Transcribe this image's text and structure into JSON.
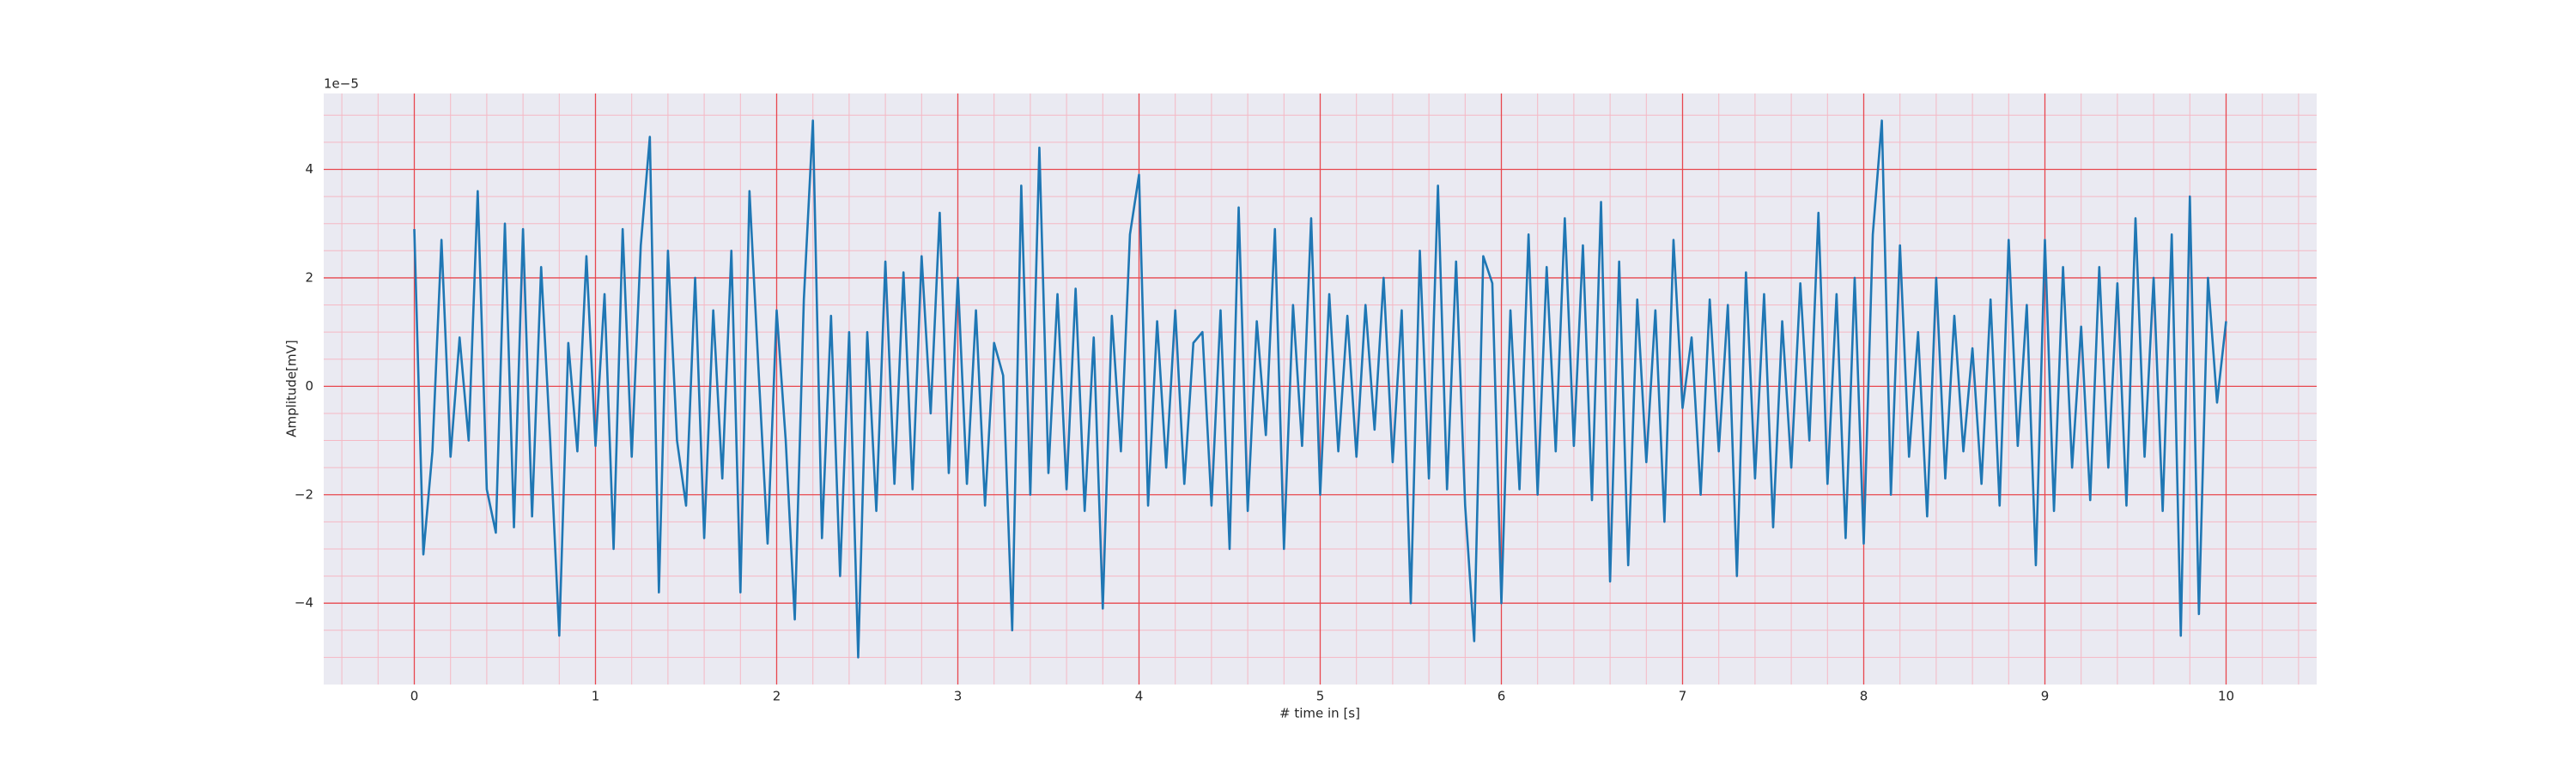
{
  "chart_data": {
    "type": "line",
    "xlabel": "# time in [s]",
    "ylabel": "Amplitude[mV]",
    "y_offset_label": "1e−5",
    "color": "#1f77b4",
    "grid": true,
    "minor_grid": true,
    "xlim": [
      -0.5,
      10.5
    ],
    "ylim": [
      -5.5,
      5.4
    ],
    "xticks": [
      0,
      1,
      2,
      3,
      4,
      5,
      6,
      7,
      8,
      9,
      10
    ],
    "yticks": [
      {
        "value": -4,
        "label": "−4"
      },
      {
        "value": -2,
        "label": "−2"
      },
      0,
      2,
      4
    ],
    "xminorticks": [
      -0.4,
      -0.2,
      0.2,
      0.4,
      0.6,
      0.8,
      1.2,
      1.4,
      1.6,
      1.8,
      2.2,
      2.4,
      2.6,
      2.8,
      3.2,
      3.4,
      3.6,
      3.8,
      4.2,
      4.4,
      4.6,
      4.8,
      5.2,
      5.4,
      5.6,
      5.8,
      6.2,
      6.4,
      6.6,
      6.8,
      7.2,
      7.4,
      7.6,
      7.8,
      8.2,
      8.4,
      8.6,
      8.8,
      9.2,
      9.4,
      9.6,
      9.8,
      10.2,
      10.4
    ],
    "yminorticks": [
      -5,
      -4.5,
      -3.5,
      -3,
      -2.5,
      -1.5,
      -1,
      -0.5,
      0.5,
      1,
      1.5,
      2.5,
      3,
      3.5,
      4.5,
      5
    ],
    "x": [
      0,
      0.05,
      0.1,
      0.15,
      0.2,
      0.25,
      0.3,
      0.35,
      0.4,
      0.45,
      0.5,
      0.55,
      0.6,
      0.65,
      0.7,
      0.75,
      0.8,
      0.85,
      0.9,
      0.95,
      1,
      1.05,
      1.1,
      1.15,
      1.2,
      1.25,
      1.3,
      1.35,
      1.4,
      1.45,
      1.5,
      1.55,
      1.6,
      1.65,
      1.7,
      1.75,
      1.8,
      1.85,
      1.9,
      1.95,
      2,
      2.05,
      2.1,
      2.15,
      2.2,
      2.25,
      2.3,
      2.35,
      2.4,
      2.45,
      2.5,
      2.55,
      2.6,
      2.65,
      2.7,
      2.75,
      2.8,
      2.85,
      2.9,
      2.95,
      3,
      3.05,
      3.1,
      3.15,
      3.2,
      3.25,
      3.3,
      3.35,
      3.4,
      3.45,
      3.5,
      3.55,
      3.6,
      3.65,
      3.7,
      3.75,
      3.8,
      3.85,
      3.9,
      3.95,
      4,
      4.05,
      4.1,
      4.15,
      4.2,
      4.25,
      4.3,
      4.35,
      4.4,
      4.45,
      4.5,
      4.55,
      4.6,
      4.65,
      4.7,
      4.75,
      4.8,
      4.85,
      4.9,
      4.95,
      5,
      5.05,
      5.1,
      5.15,
      5.2,
      5.25,
      5.3,
      5.35,
      5.4,
      5.45,
      5.5,
      5.55,
      5.6,
      5.65,
      5.7,
      5.75,
      5.8,
      5.85,
      5.9,
      5.95,
      6,
      6.05,
      6.1,
      6.15,
      6.2,
      6.25,
      6.3,
      6.35,
      6.4,
      6.45,
      6.5,
      6.55,
      6.6,
      6.65,
      6.7,
      6.75,
      6.8,
      6.85,
      6.9,
      6.95,
      7,
      7.05,
      7.1,
      7.15,
      7.2,
      7.25,
      7.3,
      7.35,
      7.4,
      7.45,
      7.5,
      7.55,
      7.6,
      7.65,
      7.7,
      7.75,
      7.8,
      7.85,
      7.9,
      7.95,
      8,
      8.05,
      8.1,
      8.15,
      8.2,
      8.25,
      8.3,
      8.35,
      8.4,
      8.45,
      8.5,
      8.55,
      8.6,
      8.65,
      8.7,
      8.75,
      8.8,
      8.85,
      8.9,
      8.95,
      9,
      9.05,
      9.1,
      9.15,
      9.2,
      9.25,
      9.3,
      9.35,
      9.4,
      9.45,
      9.5,
      9.55,
      9.6,
      9.65,
      9.7,
      9.75,
      9.8,
      9.85,
      9.9,
      9.95,
      10
    ],
    "values": [
      2.9,
      -3.1,
      -1.2,
      2.7,
      -1.3,
      0.9,
      -1.0,
      3.6,
      -1.9,
      -2.7,
      3.0,
      -2.6,
      2.9,
      -2.4,
      2.2,
      -1.0,
      -4.6,
      0.8,
      -1.2,
      2.4,
      -1.1,
      1.7,
      -3.0,
      2.9,
      -1.3,
      2.6,
      4.6,
      -3.8,
      2.5,
      -1.0,
      -2.2,
      2.0,
      -2.8,
      1.4,
      -1.7,
      2.5,
      -3.8,
      3.6,
      0.3,
      -2.9,
      1.4,
      -1.0,
      -4.3,
      1.6,
      4.9,
      -2.8,
      1.3,
      -3.5,
      1.0,
      -5.0,
      1.0,
      -2.3,
      2.3,
      -1.8,
      2.1,
      -1.9,
      2.4,
      -0.5,
      3.2,
      -1.6,
      2.0,
      -1.8,
      1.4,
      -2.2,
      0.8,
      0.2,
      -4.5,
      3.7,
      -2.0,
      4.4,
      -1.6,
      1.7,
      -1.9,
      1.8,
      -2.3,
      0.9,
      -4.1,
      1.3,
      -1.2,
      2.8,
      3.9,
      -2.2,
      1.2,
      -1.5,
      1.4,
      -1.8,
      0.8,
      1.0,
      -2.2,
      1.4,
      -3.0,
      3.3,
      -2.3,
      1.2,
      -0.9,
      2.9,
      -3.0,
      1.5,
      -1.1,
      3.1,
      -2.0,
      1.7,
      -1.2,
      1.3,
      -1.3,
      1.5,
      -0.8,
      2.0,
      -1.4,
      1.4,
      -4.0,
      2.5,
      -1.7,
      3.7,
      -1.9,
      2.3,
      -2.2,
      -4.7,
      2.4,
      1.9,
      -4.0,
      1.4,
      -1.9,
      2.8,
      -2.0,
      2.2,
      -1.2,
      3.1,
      -1.1,
      2.6,
      -2.1,
      3.4,
      -3.6,
      2.3,
      -3.3,
      1.6,
      -1.4,
      1.4,
      -2.5,
      2.7,
      -0.4,
      0.9,
      -2.0,
      1.6,
      -1.2,
      1.5,
      -3.5,
      2.1,
      -1.7,
      1.7,
      -2.6,
      1.2,
      -1.5,
      1.9,
      -1.0,
      3.2,
      -1.8,
      1.7,
      -2.8,
      2.0,
      -2.9,
      2.8,
      4.9,
      -2.0,
      2.6,
      -1.3,
      1.0,
      -2.4,
      2.0,
      -1.7,
      1.3,
      -1.2,
      0.7,
      -1.8,
      1.6,
      -2.2,
      2.7,
      -1.1,
      1.5,
      -3.3,
      2.7,
      -2.3,
      2.2,
      -1.5,
      1.1,
      -2.1,
      2.2,
      -1.5,
      1.9,
      -2.2,
      3.1,
      -1.3,
      2.0,
      -2.3,
      2.8,
      -4.6,
      3.5,
      -4.2,
      2.0,
      -0.3,
      1.2
    ]
  }
}
